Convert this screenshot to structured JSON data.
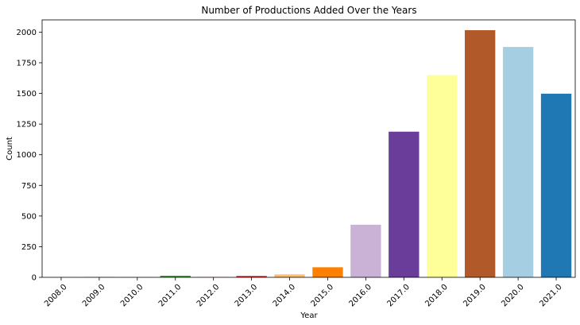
{
  "chart_data": {
    "type": "bar",
    "title": "Number of Productions Added Over the Years",
    "xlabel": "Year",
    "ylabel": "Count",
    "categories": [
      "2008.0",
      "2009.0",
      "2010.0",
      "2011.0",
      "2012.0",
      "2013.0",
      "2014.0",
      "2015.0",
      "2016.0",
      "2017.0",
      "2018.0",
      "2019.0",
      "2020.0",
      "2021.0"
    ],
    "values": [
      2,
      2,
      1,
      13,
      3,
      11,
      24,
      82,
      429,
      1188,
      1649,
      2016,
      1879,
      1498
    ],
    "colors": [
      "#a6cee3",
      "#1f78b4",
      "#b2df8a",
      "#33a02c",
      "#fb9a99",
      "#e31a1c",
      "#fdbf6f",
      "#ff7f00",
      "#cab2d6",
      "#6a3d9a",
      "#ffff99",
      "#b15928",
      "#a6cee3",
      "#1f78b4"
    ],
    "ylim": [
      0,
      2100
    ],
    "yticks": [
      0,
      250,
      500,
      750,
      1000,
      1250,
      1500,
      1750,
      2000
    ],
    "ytick_labels": [
      "0",
      "250",
      "500",
      "750",
      "1000",
      "1250",
      "1500",
      "1750",
      "2000"
    ],
    "grid": false,
    "legend": "none"
  }
}
